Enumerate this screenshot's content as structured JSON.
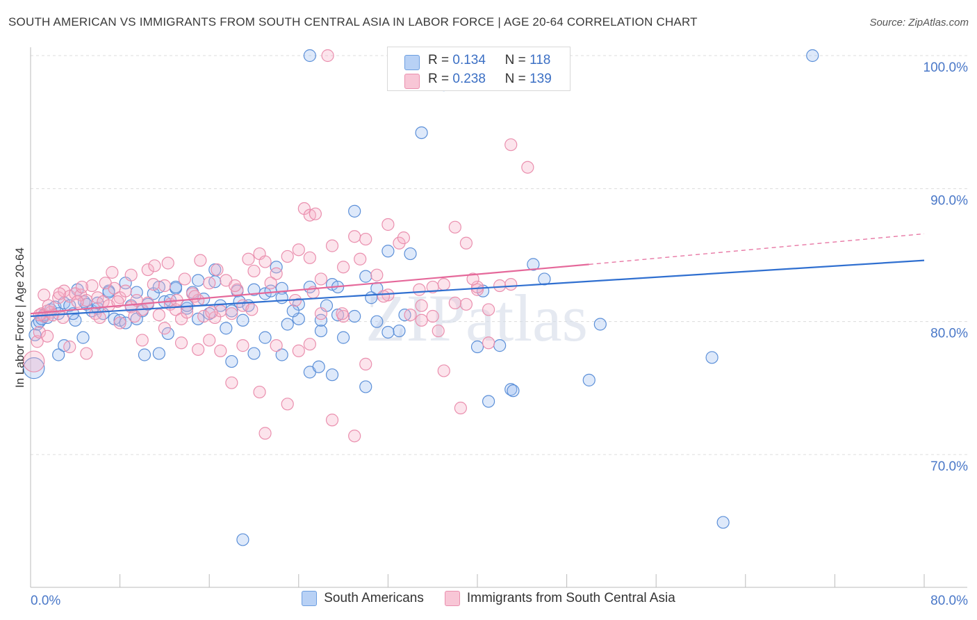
{
  "title": "SOUTH AMERICAN VS IMMIGRANTS FROM SOUTH CENTRAL ASIA IN LABOR FORCE | AGE 20-64 CORRELATION CHART",
  "source": "Source: ZipAtlas.com",
  "watermark": "ZIPatlas",
  "legend": {
    "row1": {
      "r_label": "R =",
      "r_value": "0.134",
      "n_label": "N =",
      "n_value": "118"
    },
    "row2": {
      "r_label": "R =",
      "r_value": "0.238",
      "n_label": "N =",
      "n_value": "139"
    }
  },
  "bottom_legend": {
    "series1": "South Americans",
    "series2": "Immigrants from South Central Asia"
  },
  "colors": {
    "blue": "#5b8fd8",
    "blue_line": "#2f6fd0",
    "pink": "#ea8fae",
    "pink_line": "#e5689a",
    "axis_label": "#4a78c8"
  },
  "chart_data": {
    "type": "scatter",
    "ylabel": "In Labor Force | Age 20-64",
    "x_tick_labels": [
      "0.0%",
      "80.0%"
    ],
    "y_tick_labels": [
      "100.0%",
      "90.0%",
      "80.0%",
      "70.0%"
    ],
    "xlim": [
      0,
      80
    ],
    "ylim": [
      60,
      100
    ],
    "grid": "dashed horizontal",
    "legend_placement": "top-center",
    "series": [
      {
        "name": "South Americans",
        "color": "#5b8fd8",
        "trend": {
          "x": [
            0,
            80
          ],
          "y": [
            80.4,
            84.6
          ]
        },
        "points": [
          [
            0.3,
            76.5
          ],
          [
            0.4,
            79
          ],
          [
            0.6,
            79.8
          ],
          [
            0.8,
            80
          ],
          [
            1,
            80.2
          ],
          [
            1.2,
            80.5
          ],
          [
            1.5,
            80.3
          ],
          [
            1.8,
            80.9
          ],
          [
            2.2,
            81.1
          ],
          [
            2.5,
            80.6
          ],
          [
            3,
            81.4
          ],
          [
            3.5,
            81.2
          ],
          [
            4,
            80.1
          ],
          [
            4.2,
            82.4
          ],
          [
            4.8,
            81.5
          ],
          [
            5,
            81.3
          ],
          [
            5.5,
            80.8
          ],
          [
            6,
            81
          ],
          [
            6.5,
            80.6
          ],
          [
            7,
            82.3
          ],
          [
            7.5,
            80.2
          ],
          [
            8,
            80.1
          ],
          [
            8.5,
            79.9
          ],
          [
            9,
            81.2
          ],
          [
            9.5,
            82.2
          ],
          [
            10,
            80.8
          ],
          [
            10.5,
            81.3
          ],
          [
            11,
            82.1
          ],
          [
            11.5,
            82.6
          ],
          [
            12,
            81.5
          ],
          [
            12.5,
            81.6
          ],
          [
            13,
            82.5
          ],
          [
            14,
            81
          ],
          [
            14.5,
            82.2
          ],
          [
            15,
            83.1
          ],
          [
            15.5,
            81.7
          ],
          [
            16,
            80.6
          ],
          [
            16.5,
            83
          ],
          [
            17,
            81.2
          ],
          [
            18,
            80.8
          ],
          [
            18.5,
            82.3
          ],
          [
            19,
            80.1
          ],
          [
            20,
            82.4
          ],
          [
            21,
            82.1
          ],
          [
            22,
            84.1
          ],
          [
            22.5,
            82.5
          ],
          [
            23,
            79.8
          ],
          [
            24,
            80.2
          ],
          [
            25,
            82.6
          ],
          [
            26,
            79.3
          ],
          [
            26.5,
            81.2
          ],
          [
            27,
            82.8
          ],
          [
            27.5,
            80.5
          ],
          [
            29,
            80.4
          ],
          [
            30,
            83.4
          ],
          [
            30.5,
            81.8
          ],
          [
            31,
            82.5
          ],
          [
            32,
            85.3
          ],
          [
            33,
            79.3
          ],
          [
            34,
            85.1
          ],
          [
            35,
            94.2
          ],
          [
            4.7,
            78.8
          ],
          [
            2.5,
            77.5
          ],
          [
            3,
            78.2
          ],
          [
            11.5,
            77.6
          ],
          [
            12.3,
            79.1
          ],
          [
            17.5,
            79.5
          ],
          [
            18,
            77
          ],
          [
            20,
            77.6
          ],
          [
            21,
            78.8
          ],
          [
            22.5,
            77.5
          ],
          [
            25,
            76.2
          ],
          [
            25.8,
            76.6
          ],
          [
            27,
            76
          ],
          [
            28,
            78.8
          ],
          [
            30,
            75.1
          ],
          [
            32,
            79.2
          ],
          [
            35.7,
            100
          ],
          [
            36.5,
            100
          ],
          [
            37,
            97.8
          ],
          [
            40,
            78.1
          ],
          [
            40.5,
            82.3
          ],
          [
            42,
            78.2
          ],
          [
            41,
            74
          ],
          [
            43,
            74.9
          ],
          [
            43.2,
            74.8
          ],
          [
            45,
            84.3
          ],
          [
            46,
            83.2
          ],
          [
            50,
            75.6
          ],
          [
            51,
            79.8
          ],
          [
            61,
            77.3
          ],
          [
            62,
            64.9
          ],
          [
            70,
            100
          ],
          [
            25,
            100
          ],
          [
            19,
            63.6
          ],
          [
            29,
            88.3
          ],
          [
            35,
            100
          ],
          [
            13,
            82.6
          ],
          [
            16.5,
            83.9
          ],
          [
            24,
            81.3
          ],
          [
            9.5,
            80.2
          ],
          [
            7,
            82.2
          ],
          [
            10.2,
            77.5
          ],
          [
            14,
            81.2
          ],
          [
            18.7,
            81.5
          ],
          [
            21.5,
            82.3
          ],
          [
            8.5,
            82.9
          ],
          [
            6,
            81.4
          ],
          [
            3.8,
            80.6
          ],
          [
            22.5,
            81.8
          ],
          [
            26,
            80.1
          ],
          [
            31,
            80
          ],
          [
            27.5,
            82.6
          ],
          [
            33.5,
            80.5
          ],
          [
            23.5,
            80.8
          ],
          [
            19.5,
            81.2
          ],
          [
            15,
            80.2
          ]
        ]
      },
      {
        "name": "Immigrants from South Central Asia",
        "color": "#ea8fae",
        "trend": {
          "x": [
            0,
            50
          ],
          "y": [
            80.6,
            84.3
          ]
        },
        "trend_dashed": {
          "x": [
            50,
            80
          ],
          "y": [
            84.3,
            86.6
          ]
        },
        "points": [
          [
            0.3,
            77
          ],
          [
            0.6,
            78.5
          ],
          [
            0.8,
            79.2
          ],
          [
            1,
            80.6
          ],
          [
            1.2,
            80.4
          ],
          [
            1.5,
            80.8
          ],
          [
            1.8,
            80.7
          ],
          [
            2,
            80.5
          ],
          [
            2.5,
            81.8
          ],
          [
            3,
            82.3
          ],
          [
            3.5,
            81.9
          ],
          [
            4,
            82.1
          ],
          [
            4.5,
            82
          ],
          [
            5,
            81.6
          ],
          [
            5.5,
            82.7
          ],
          [
            6,
            81.8
          ],
          [
            6.5,
            81.5
          ],
          [
            7,
            81.2
          ],
          [
            7.5,
            82.5
          ],
          [
            8,
            81.8
          ],
          [
            8.5,
            82.3
          ],
          [
            9,
            81.1
          ],
          [
            9.5,
            81.6
          ],
          [
            10,
            80.9
          ],
          [
            10.5,
            81.4
          ],
          [
            11,
            82.8
          ],
          [
            11.5,
            80.5
          ],
          [
            12,
            82.7
          ],
          [
            12.5,
            81.3
          ],
          [
            13,
            80.9
          ],
          [
            13.5,
            80.2
          ],
          [
            14,
            80.7
          ],
          [
            14.5,
            82.1
          ],
          [
            15,
            81.6
          ],
          [
            15.5,
            80.4
          ],
          [
            16,
            82.9
          ],
          [
            16.5,
            80.3
          ],
          [
            17,
            80.8
          ],
          [
            17.5,
            83.1
          ],
          [
            18,
            80.6
          ],
          [
            18.5,
            82.4
          ],
          [
            19,
            81.2
          ],
          [
            19.5,
            84.7
          ],
          [
            20,
            83.8
          ],
          [
            20.5,
            85.1
          ],
          [
            21,
            84.5
          ],
          [
            22,
            83.6
          ],
          [
            23,
            84.9
          ],
          [
            24,
            85.4
          ],
          [
            25,
            84.8
          ],
          [
            26,
            83.2
          ],
          [
            27,
            85.7
          ],
          [
            28,
            84.1
          ],
          [
            29,
            86.4
          ],
          [
            30,
            86.2
          ],
          [
            31,
            83.5
          ],
          [
            32,
            87.3
          ],
          [
            33,
            85.9
          ],
          [
            35,
            81.2
          ],
          [
            36,
            80.4
          ],
          [
            37,
            82.8
          ],
          [
            38,
            87.1
          ],
          [
            39,
            81.3
          ],
          [
            40,
            82.4
          ],
          [
            41,
            80.9
          ],
          [
            42,
            82.7
          ],
          [
            43,
            82.8
          ],
          [
            1.5,
            78.9
          ],
          [
            3.5,
            78.1
          ],
          [
            5,
            77.6
          ],
          [
            8,
            79.9
          ],
          [
            10,
            78.6
          ],
          [
            12,
            79.5
          ],
          [
            13.5,
            78.4
          ],
          [
            15,
            77.9
          ],
          [
            16,
            78.6
          ],
          [
            17,
            77.8
          ],
          [
            18,
            75.4
          ],
          [
            19,
            78.2
          ],
          [
            20.5,
            74.7
          ],
          [
            21,
            71.6
          ],
          [
            22,
            78.2
          ],
          [
            23,
            73.8
          ],
          [
            24,
            77.8
          ],
          [
            25,
            78.3
          ],
          [
            26,
            80.6
          ],
          [
            27,
            72.6
          ],
          [
            28,
            80.4
          ],
          [
            29,
            71.4
          ],
          [
            30,
            76.8
          ],
          [
            32,
            82
          ],
          [
            34,
            80.5
          ],
          [
            35,
            80.1
          ],
          [
            36,
            82.6
          ],
          [
            37,
            76.3
          ],
          [
            38.5,
            73.5
          ],
          [
            39,
            85.9
          ],
          [
            40,
            82.6
          ],
          [
            41,
            78.4
          ],
          [
            43,
            93.3
          ],
          [
            44.5,
            91.6
          ],
          [
            26.6,
            100
          ],
          [
            24.5,
            88.5
          ],
          [
            25,
            88
          ],
          [
            25.5,
            88.1
          ],
          [
            1.2,
            82
          ],
          [
            2.6,
            82.1
          ],
          [
            4.2,
            81.5
          ],
          [
            5.8,
            80.6
          ],
          [
            6.7,
            82.9
          ],
          [
            7.8,
            81.5
          ],
          [
            9,
            83.5
          ],
          [
            10.5,
            83.9
          ],
          [
            12.3,
            84.4
          ],
          [
            13.8,
            83.2
          ],
          [
            15.2,
            84.6
          ],
          [
            16.7,
            83.9
          ],
          [
            18.3,
            82.7
          ],
          [
            19.8,
            80.9
          ],
          [
            21.5,
            82.9
          ],
          [
            23.7,
            81.6
          ],
          [
            25.3,
            82.2
          ],
          [
            27.9,
            80.6
          ],
          [
            29.5,
            84.7
          ],
          [
            31.6,
            81.9
          ],
          [
            33.4,
            86.3
          ],
          [
            34.8,
            82.4
          ],
          [
            36.5,
            79.3
          ],
          [
            38,
            81.4
          ],
          [
            39.6,
            83.2
          ],
          [
            0.8,
            80.5
          ],
          [
            1.6,
            81.2
          ],
          [
            2.9,
            80.3
          ],
          [
            4.6,
            82.6
          ],
          [
            6.2,
            80.3
          ],
          [
            7.3,
            83.7
          ],
          [
            9.3,
            80.4
          ],
          [
            11.1,
            84.2
          ],
          [
            13.1,
            81.6
          ],
          [
            14.7,
            81.9
          ],
          [
            16.2,
            80.7
          ]
        ]
      }
    ]
  }
}
